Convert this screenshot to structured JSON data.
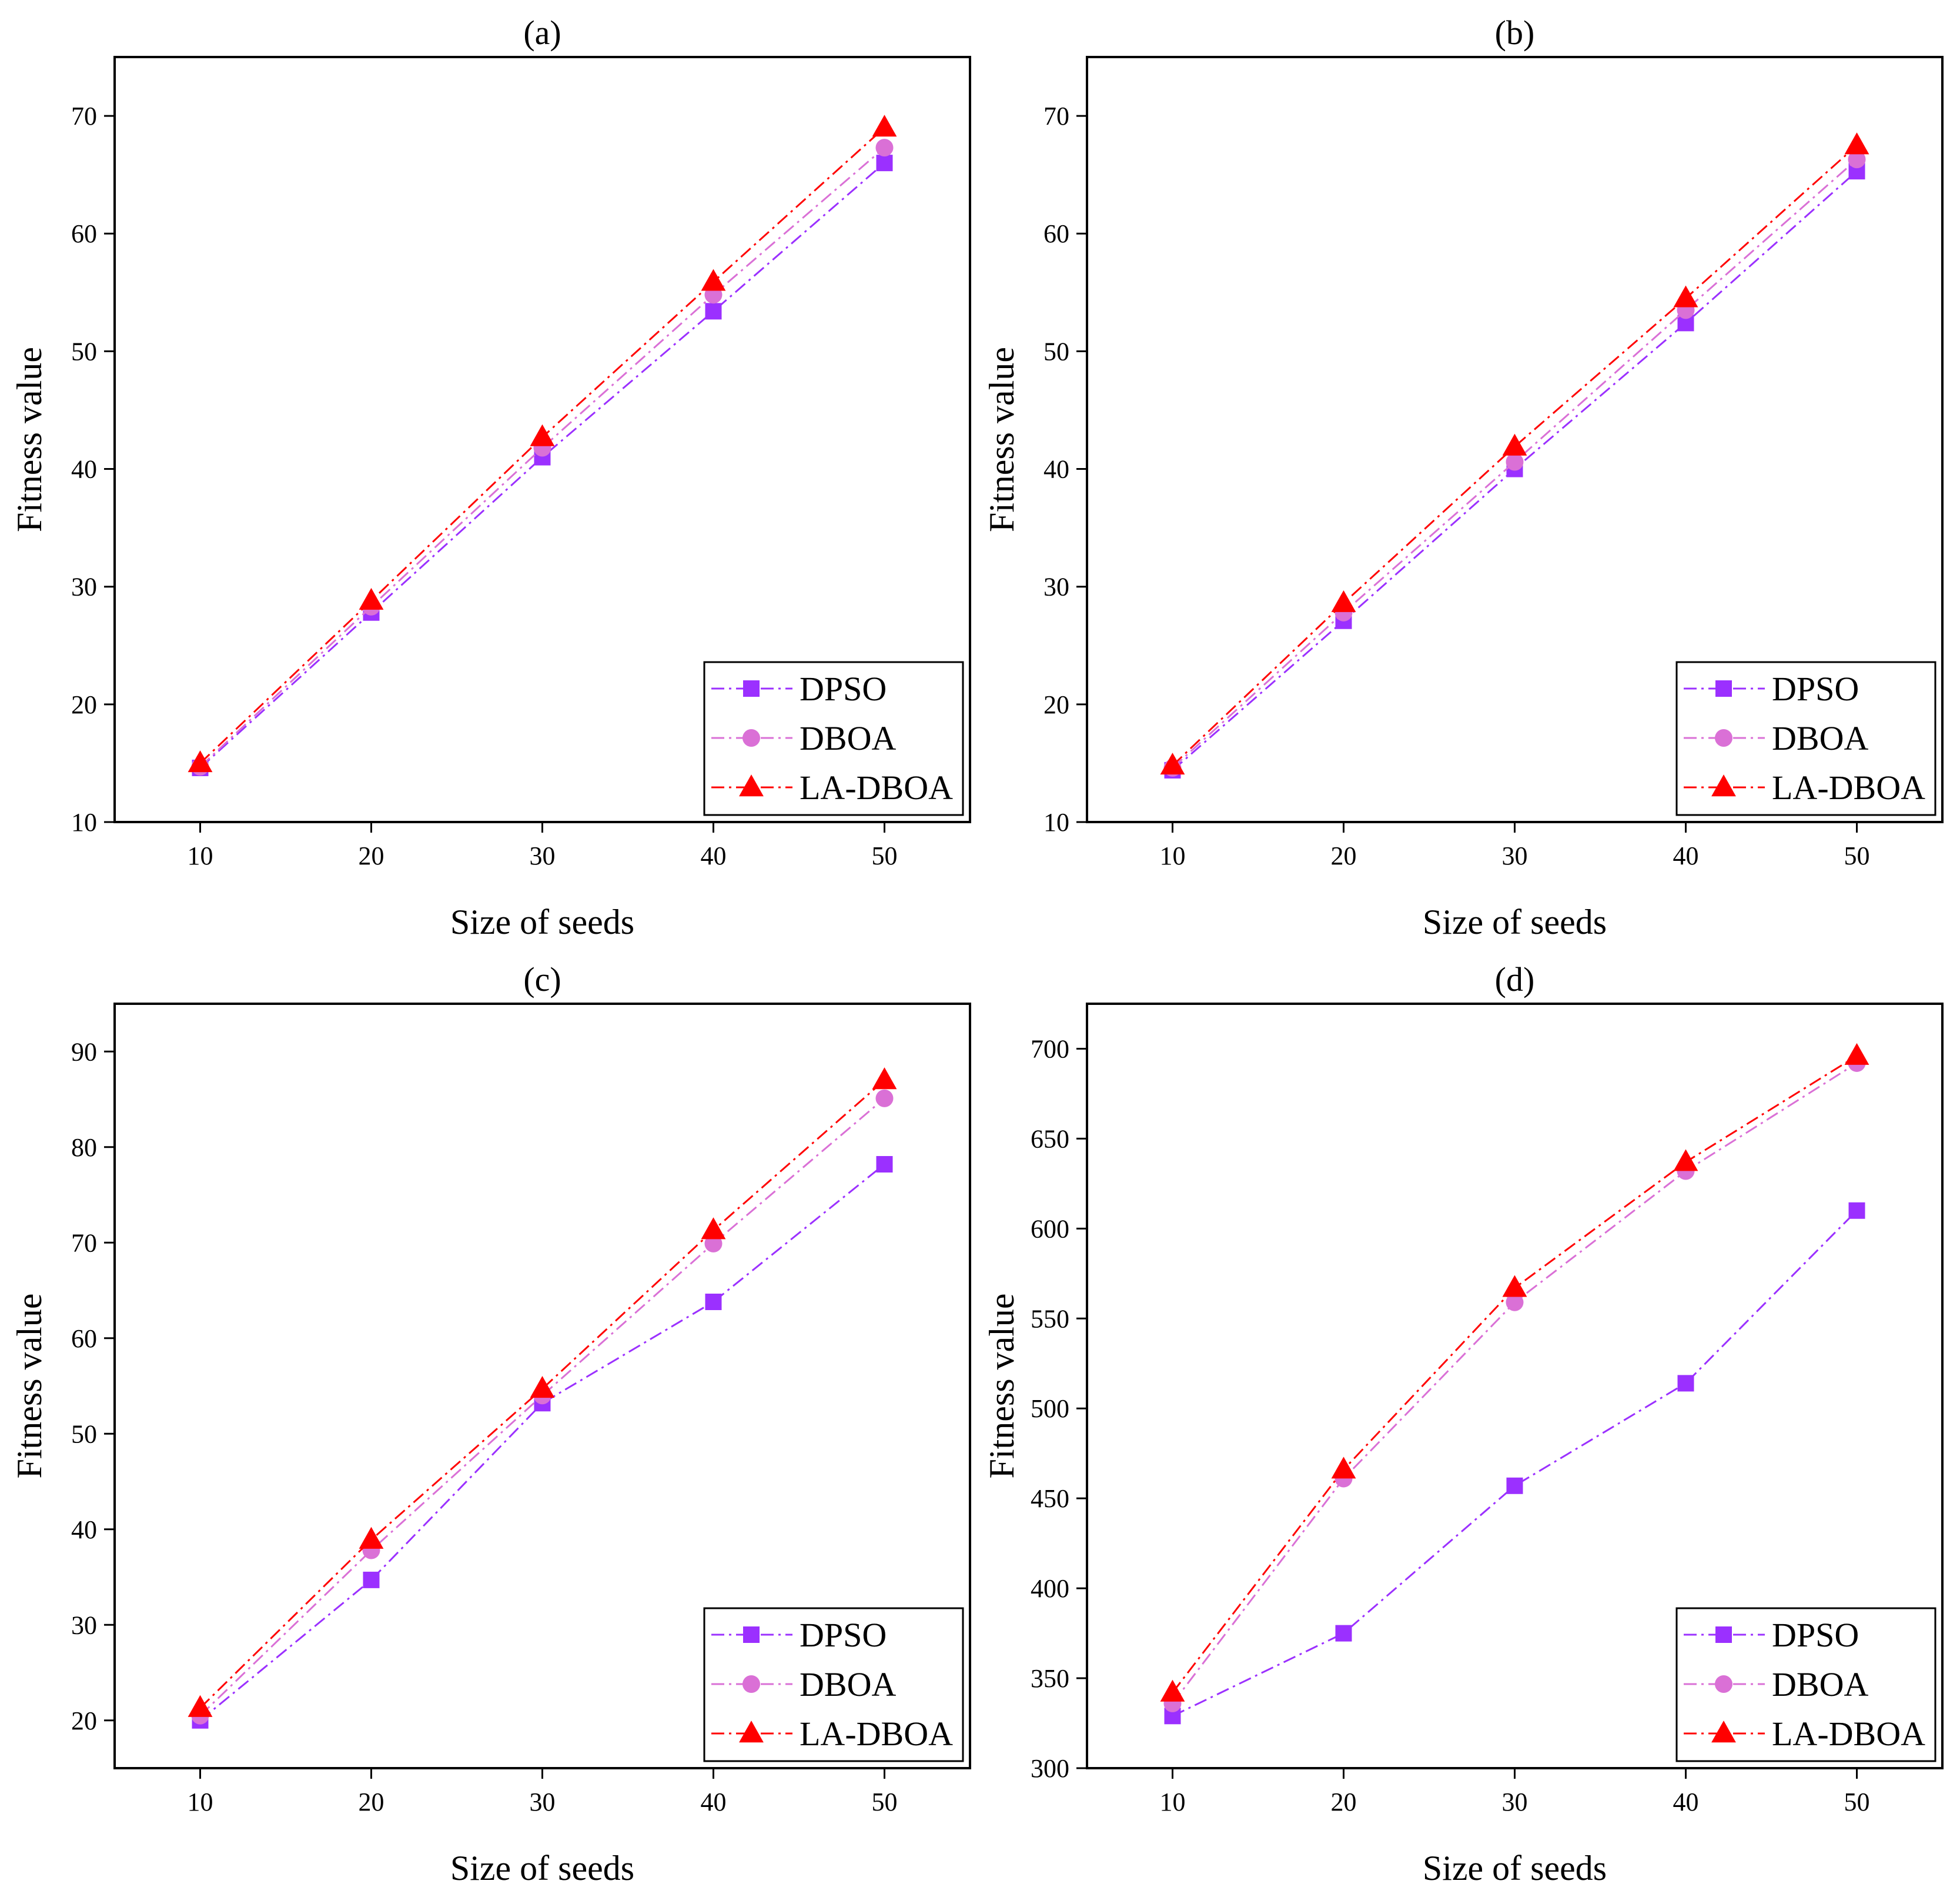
{
  "chart_data": [
    {
      "type": "line",
      "title": "(a)",
      "xlabel": "Size of seeds",
      "ylabel": "Fitness value",
      "x": [
        10,
        20,
        30,
        40,
        50
      ],
      "xlim": [
        5,
        55
      ],
      "ylim": [
        10,
        75
      ],
      "xticks": [
        10,
        20,
        30,
        40,
        50
      ],
      "yticks": [
        10,
        20,
        30,
        40,
        50,
        60,
        70
      ],
      "legend_position": "bottom-right",
      "series": [
        {
          "name": "DPSO",
          "values": [
            14.6,
            27.8,
            41.0,
            53.4,
            66.0
          ],
          "color": "#9b30ff",
          "marker": "square"
        },
        {
          "name": "DBOA",
          "values": [
            14.7,
            28.3,
            41.8,
            54.8,
            67.3
          ],
          "color": "#da70d6",
          "marker": "circle"
        },
        {
          "name": "LA-DBOA",
          "values": [
            15.0,
            28.8,
            42.7,
            55.9,
            69.0
          ],
          "color": "#ff0000",
          "marker": "triangle"
        }
      ]
    },
    {
      "type": "line",
      "title": "(b)",
      "xlabel": "Size of seeds",
      "ylabel": "Fitness value",
      "x": [
        10,
        20,
        30,
        40,
        50
      ],
      "xlim": [
        5,
        55
      ],
      "ylim": [
        10,
        75
      ],
      "xticks": [
        10,
        20,
        30,
        40,
        50
      ],
      "yticks": [
        10,
        20,
        30,
        40,
        50,
        60,
        70
      ],
      "legend_position": "bottom-right",
      "series": [
        {
          "name": "DPSO",
          "values": [
            14.4,
            27.1,
            40.0,
            52.4,
            65.3
          ],
          "color": "#9b30ff",
          "marker": "square"
        },
        {
          "name": "DBOA",
          "values": [
            14.6,
            27.8,
            40.6,
            53.5,
            66.3
          ],
          "color": "#da70d6",
          "marker": "circle"
        },
        {
          "name": "LA-DBOA",
          "values": [
            14.8,
            28.6,
            41.9,
            54.5,
            67.5
          ],
          "color": "#ff0000",
          "marker": "triangle"
        }
      ]
    },
    {
      "type": "line",
      "title": "(c)",
      "xlabel": "Size of seeds",
      "ylabel": "Fitness value",
      "x": [
        10,
        20,
        30,
        40,
        50
      ],
      "xlim": [
        5,
        55
      ],
      "ylim": [
        15,
        95
      ],
      "xticks": [
        10,
        20,
        30,
        40,
        50
      ],
      "yticks": [
        20,
        30,
        40,
        50,
        60,
        70,
        80,
        90
      ],
      "legend_position": "bottom-right",
      "series": [
        {
          "name": "DPSO",
          "values": [
            20.0,
            34.7,
            53.2,
            63.8,
            78.2
          ],
          "color": "#9b30ff",
          "marker": "square"
        },
        {
          "name": "DBOA",
          "values": [
            20.5,
            37.8,
            54.0,
            69.9,
            85.1
          ],
          "color": "#da70d6",
          "marker": "circle"
        },
        {
          "name": "LA-DBOA",
          "values": [
            21.3,
            38.9,
            54.7,
            71.3,
            87.0
          ],
          "color": "#ff0000",
          "marker": "triangle"
        }
      ]
    },
    {
      "type": "line",
      "title": "(d)",
      "xlabel": "Size of seeds",
      "ylabel": "Fitness value",
      "x": [
        10,
        20,
        30,
        40,
        50
      ],
      "xlim": [
        5,
        55
      ],
      "ylim": [
        300,
        725
      ],
      "xticks": [
        10,
        20,
        30,
        40,
        50
      ],
      "yticks": [
        300,
        350,
        400,
        450,
        500,
        550,
        600,
        650,
        700
      ],
      "legend_position": "bottom-right",
      "series": [
        {
          "name": "DPSO",
          "values": [
            329,
            375,
            457,
            514,
            610
          ],
          "color": "#9b30ff",
          "marker": "square"
        },
        {
          "name": "DBOA",
          "values": [
            336,
            461,
            559,
            632,
            692
          ],
          "color": "#da70d6",
          "marker": "circle"
        },
        {
          "name": "LA-DBOA",
          "values": [
            342,
            466,
            567,
            637,
            696
          ],
          "color": "#ff0000",
          "marker": "triangle"
        }
      ]
    }
  ]
}
